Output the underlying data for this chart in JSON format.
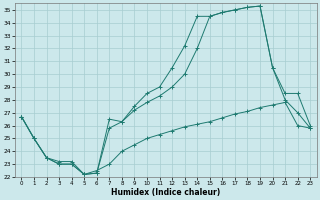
{
  "xlabel": "Humidex (Indice chaleur)",
  "bg_color": "#cce8eb",
  "grid_color": "#a8cdd1",
  "line_color": "#1e7a70",
  "xlim": [
    -0.5,
    23.5
  ],
  "ylim": [
    22,
    35.5
  ],
  "xticks": [
    0,
    1,
    2,
    3,
    4,
    5,
    6,
    7,
    8,
    9,
    10,
    11,
    12,
    13,
    14,
    15,
    16,
    17,
    18,
    19,
    20,
    21,
    22,
    23
  ],
  "yticks": [
    22,
    23,
    24,
    25,
    26,
    27,
    28,
    29,
    30,
    31,
    32,
    33,
    34,
    35
  ],
  "series1_x": [
    0,
    1,
    2,
    3,
    4,
    5,
    6,
    7,
    8,
    9,
    10,
    11,
    12,
    13,
    14,
    15,
    16,
    17,
    18,
    19,
    20,
    21,
    22,
    23
  ],
  "series1_y": [
    26.7,
    25.0,
    23.5,
    23.0,
    23.0,
    22.2,
    22.3,
    25.8,
    26.3,
    27.5,
    28.5,
    29.0,
    30.5,
    32.2,
    34.5,
    34.5,
    34.8,
    35.0,
    35.2,
    35.3,
    30.5,
    28.0,
    27.0,
    25.8
  ],
  "series2_x": [
    0,
    1,
    2,
    3,
    4,
    5,
    6,
    7,
    8,
    9,
    10,
    11,
    12,
    13,
    14,
    15,
    16,
    17,
    18,
    19,
    20,
    21,
    22,
    23
  ],
  "series2_y": [
    26.7,
    25.0,
    23.5,
    23.0,
    23.0,
    22.2,
    22.3,
    26.5,
    26.3,
    27.2,
    27.8,
    28.3,
    29.0,
    30.0,
    32.0,
    34.5,
    34.8,
    35.0,
    35.2,
    35.3,
    30.5,
    28.5,
    28.5,
    26.0
  ],
  "series3_x": [
    0,
    1,
    2,
    3,
    4,
    5,
    6,
    7,
    8,
    9,
    10,
    11,
    12,
    13,
    14,
    15,
    16,
    17,
    18,
    19,
    20,
    21,
    22,
    23
  ],
  "series3_y": [
    26.7,
    25.0,
    23.5,
    23.2,
    23.2,
    22.2,
    22.5,
    23.0,
    24.0,
    24.5,
    25.0,
    25.3,
    25.6,
    25.9,
    26.1,
    26.3,
    26.6,
    26.9,
    27.1,
    27.4,
    27.6,
    27.8,
    26.0,
    25.8
  ]
}
